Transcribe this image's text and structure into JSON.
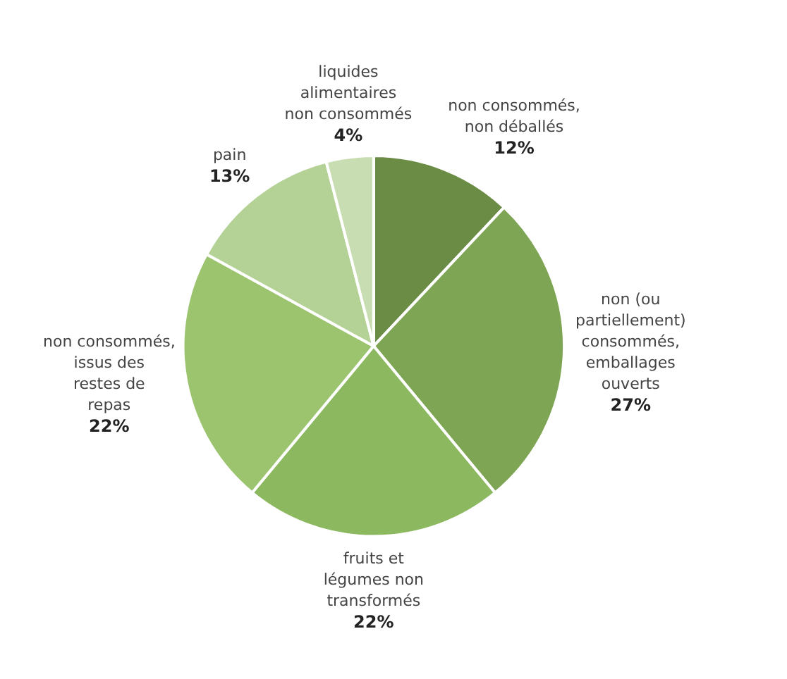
{
  "chart_data": {
    "type": "pie",
    "categories": [
      "non consommés, non déballés",
      "non (ou partiellement) consommés, emballages ouverts",
      "fruits et légumes non transformés",
      "non consommés, issus des restes de repas",
      "pain",
      "liquides alimentaires non consommés"
    ],
    "values": [
      12,
      27,
      22,
      22,
      13,
      4
    ],
    "value_labels": [
      "12%",
      "27%",
      "22%",
      "22%",
      "13%",
      "4%"
    ],
    "colors": [
      "#6b8c45",
      "#7ea553",
      "#8cb85f",
      "#9cc46f",
      "#b4d196",
      "#c9ddb2"
    ]
  }
}
